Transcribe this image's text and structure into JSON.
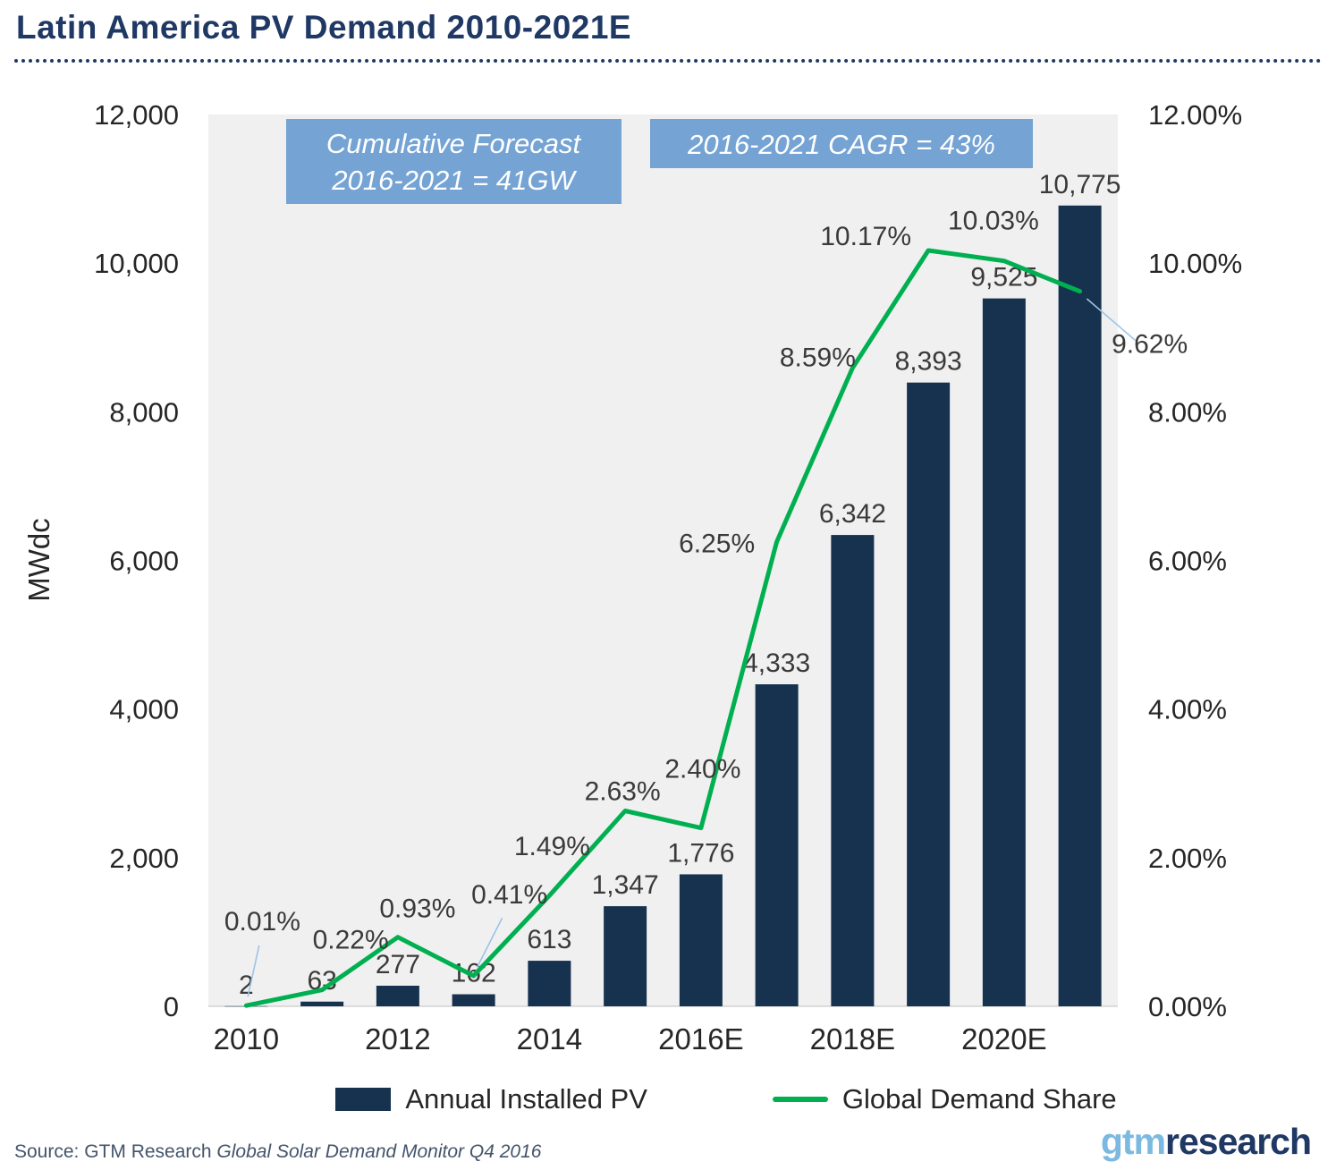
{
  "title": "Latin America PV Demand  2010-2021E",
  "annotations": {
    "box1_line1": "Cumulative Forecast",
    "box1_line2": "2016-2021 = 41GW",
    "box2": "2016-2021 CAGR = 43%",
    "box_color": "#74A3D4",
    "text_color": "#FFFFFF"
  },
  "chart_data": {
    "type": "bar",
    "subtype": "combo-bar-line",
    "categories": [
      "2010",
      "2011",
      "2012",
      "2013",
      "2014",
      "2015",
      "2016E",
      "2017E",
      "2018E",
      "2019E",
      "2020E",
      "2021E"
    ],
    "x_tick_labels": [
      "2010",
      "2012",
      "2014",
      "2016E",
      "2018E",
      "2020E"
    ],
    "series": [
      {
        "name": "Annual Installed PV",
        "type": "bar",
        "values": [
          2,
          63,
          277,
          162,
          613,
          1347,
          1776,
          4333,
          6342,
          8393,
          9525,
          10775
        ],
        "labels": [
          "2",
          "63",
          "277",
          "162",
          "613",
          "1,347",
          "1,776",
          "4,333",
          "6,342",
          "8,393",
          "9,525",
          "10,775"
        ],
        "color": "#16324F",
        "axis": "left"
      },
      {
        "name": "Global Demand Share",
        "type": "line",
        "values": [
          0.01,
          0.22,
          0.93,
          0.41,
          1.49,
          2.63,
          2.4,
          6.25,
          8.59,
          10.17,
          10.03,
          9.62
        ],
        "labels": [
          "0.01%",
          "0.22%",
          "0.93%",
          "0.41%",
          "1.49%",
          "2.63%",
          "2.40%",
          "6.25%",
          "8.59%",
          "10.17%",
          "10.03%",
          "9.62%"
        ],
        "color": "#00B050",
        "axis": "right"
      }
    ],
    "ylabel_left": "MWdc",
    "left_axis_ticks": [
      "12,000",
      "10,000",
      "8,000",
      "6,000",
      "4,000",
      "2,000",
      "0"
    ],
    "right_axis_ticks": [
      "12.00%",
      "10.00%",
      "8.00%",
      "6.00%",
      "4.00%",
      "2.00%",
      "0.00%"
    ],
    "ylim_left": [
      0,
      12000
    ],
    "ylim_right": [
      0,
      12
    ],
    "grid": false,
    "legend_position": "bottom",
    "plot_bg": "#F0F0F0",
    "leader_line_color": "#9DC3E6"
  },
  "legend": [
    {
      "label": "Annual Installed PV",
      "color": "#16324F",
      "type": "bar"
    },
    {
      "label": "Global Demand Share",
      "color": "#00B050",
      "type": "line"
    }
  ],
  "footer": {
    "source_prefix": "Source: GTM Research ",
    "source_italic": "Global Solar Demand Monitor Q4 2016"
  },
  "logo": {
    "part1": "gtm",
    "part2": "research"
  }
}
